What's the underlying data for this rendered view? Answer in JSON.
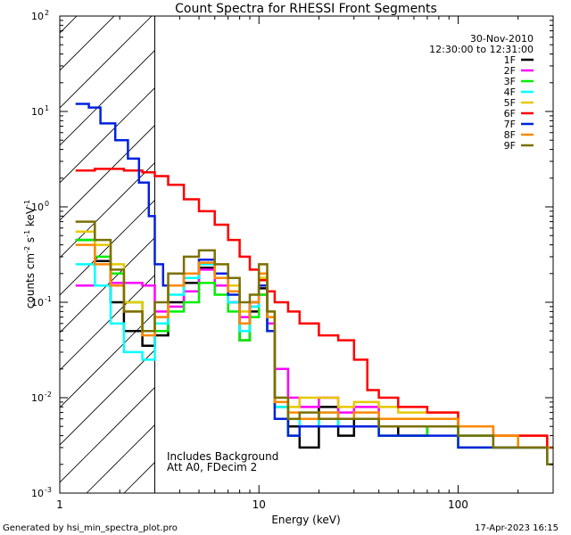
{
  "chart_data": {
    "type": "line",
    "title": "Count Spectra for RHESSI Front Segments",
    "xlabel": "Energy (keV)",
    "ylabel_parts": [
      "counts cm",
      "-2",
      " s",
      "-1",
      " keV",
      "-1"
    ],
    "xscale": "log",
    "yscale": "log",
    "xlim": [
      1,
      300
    ],
    "ylim": [
      0.001,
      100
    ],
    "x_ticks": [
      {
        "v": 1,
        "label": "1"
      },
      {
        "v": 10,
        "label": "10"
      },
      {
        "v": 100,
        "label": "100"
      }
    ],
    "y_ticks": [
      {
        "exp": -3
      },
      {
        "exp": -2
      },
      {
        "exp": -1
      },
      {
        "exp": 0
      },
      {
        "exp": 1
      },
      {
        "exp": 2
      }
    ],
    "date": "30-Nov-2010",
    "time_range": "12:30:00 to 12:31:00",
    "hatched_below_keV": 3,
    "annotations": [
      "Includes Background",
      "Att A0, FDecim 2"
    ],
    "series": [
      {
        "name": "1F",
        "color": "#000000",
        "points": [
          [
            1.2,
            0.45
          ],
          [
            1.5,
            0.27
          ],
          [
            1.8,
            0.1
          ],
          [
            2.1,
            0.05
          ],
          [
            2.6,
            0.035
          ],
          [
            3.0,
            0.045
          ],
          [
            3.5,
            0.1
          ],
          [
            4.2,
            0.16
          ],
          [
            5.0,
            0.23
          ],
          [
            6.0,
            0.2
          ],
          [
            7.0,
            0.1
          ],
          [
            8.0,
            0.04
          ],
          [
            9.0,
            0.08
          ],
          [
            10.0,
            0.14
          ],
          [
            11.0,
            0.05
          ],
          [
            12.0,
            0.008
          ],
          [
            14,
            0.005
          ],
          [
            16,
            0.003
          ],
          [
            20,
            0.008
          ],
          [
            25,
            0.004
          ],
          [
            30,
            0.006
          ],
          [
            40,
            0.005
          ],
          [
            50,
            0.004
          ],
          [
            70,
            0.005
          ],
          [
            100,
            0.004
          ],
          [
            150,
            0.003
          ],
          [
            200,
            0.003
          ],
          [
            280,
            0.003
          ]
        ]
      },
      {
        "name": "2F",
        "color": "#ff00ff",
        "points": [
          [
            1.2,
            0.15
          ],
          [
            1.5,
            0.15
          ],
          [
            1.8,
            0.16
          ],
          [
            2.1,
            0.16
          ],
          [
            2.6,
            0.15
          ],
          [
            3.0,
            0.08
          ],
          [
            3.5,
            0.09
          ],
          [
            4.2,
            0.13
          ],
          [
            5.0,
            0.22
          ],
          [
            6.0,
            0.15
          ],
          [
            7.0,
            0.1
          ],
          [
            8.0,
            0.07
          ],
          [
            9.0,
            0.09
          ],
          [
            10.0,
            0.12
          ],
          [
            11.0,
            0.06
          ],
          [
            12.0,
            0.02
          ],
          [
            14,
            0.01
          ],
          [
            16,
            0.008
          ],
          [
            20,
            0.01
          ],
          [
            25,
            0.007
          ],
          [
            30,
            0.008
          ],
          [
            40,
            0.006
          ],
          [
            50,
            0.006
          ],
          [
            70,
            0.006
          ],
          [
            100,
            0.005
          ],
          [
            150,
            0.004
          ],
          [
            200,
            0.004
          ],
          [
            280,
            0.003
          ]
        ]
      },
      {
        "name": "3F",
        "color": "#00ee00",
        "points": [
          [
            1.2,
            0.45
          ],
          [
            1.5,
            0.3
          ],
          [
            1.8,
            0.2
          ],
          [
            2.1,
            0.1
          ],
          [
            2.6,
            0.05
          ],
          [
            3.0,
            0.05
          ],
          [
            3.5,
            0.08
          ],
          [
            4.2,
            0.1
          ],
          [
            5.0,
            0.16
          ],
          [
            6.0,
            0.12
          ],
          [
            7.0,
            0.08
          ],
          [
            8.0,
            0.04
          ],
          [
            9.0,
            0.07
          ],
          [
            10.0,
            0.12
          ],
          [
            11.0,
            0.05
          ],
          [
            12.0,
            0.008
          ],
          [
            14,
            0.004
          ],
          [
            16,
            0.006
          ],
          [
            20,
            0.006
          ],
          [
            25,
            0.005
          ],
          [
            30,
            0.005
          ],
          [
            40,
            0.004
          ],
          [
            50,
            0.004
          ],
          [
            70,
            0.005
          ],
          [
            100,
            0.003
          ],
          [
            150,
            0.004
          ],
          [
            200,
            0.003
          ],
          [
            280,
            0.002
          ]
        ]
      },
      {
        "name": "4F",
        "color": "#00ffff",
        "points": [
          [
            1.2,
            0.25
          ],
          [
            1.5,
            0.15
          ],
          [
            1.8,
            0.06
          ],
          [
            2.1,
            0.03
          ],
          [
            2.6,
            0.025
          ],
          [
            3.0,
            0.06
          ],
          [
            3.5,
            0.12
          ],
          [
            4.2,
            0.18
          ],
          [
            5.0,
            0.25
          ],
          [
            6.0,
            0.2
          ],
          [
            7.0,
            0.1
          ],
          [
            8.0,
            0.05
          ],
          [
            9.0,
            0.09
          ],
          [
            10.0,
            0.15
          ],
          [
            11.0,
            0.05
          ],
          [
            12.0,
            0.008
          ],
          [
            14,
            0.006
          ],
          [
            16,
            0.005
          ],
          [
            20,
            0.007
          ],
          [
            25,
            0.005
          ],
          [
            30,
            0.005
          ],
          [
            40,
            0.005
          ],
          [
            50,
            0.005
          ],
          [
            70,
            0.005
          ],
          [
            100,
            0.004
          ],
          [
            150,
            0.003
          ],
          [
            200,
            0.003
          ],
          [
            280,
            0.002
          ]
        ]
      },
      {
        "name": "5F",
        "color": "#e6c800",
        "points": [
          [
            1.2,
            0.55
          ],
          [
            1.5,
            0.4
          ],
          [
            1.8,
            0.25
          ],
          [
            2.1,
            0.1
          ],
          [
            2.6,
            0.05
          ],
          [
            3.0,
            0.07
          ],
          [
            3.5,
            0.15
          ],
          [
            4.2,
            0.2
          ],
          [
            5.0,
            0.28
          ],
          [
            6.0,
            0.2
          ],
          [
            7.0,
            0.15
          ],
          [
            8.0,
            0.08
          ],
          [
            9.0,
            0.1
          ],
          [
            10.0,
            0.18
          ],
          [
            11.0,
            0.08
          ],
          [
            12.0,
            0.01
          ],
          [
            14,
            0.008
          ],
          [
            16,
            0.01
          ],
          [
            20,
            0.01
          ],
          [
            25,
            0.008
          ],
          [
            30,
            0.009
          ],
          [
            40,
            0.008
          ],
          [
            50,
            0.007
          ],
          [
            70,
            0.007
          ],
          [
            100,
            0.005
          ],
          [
            150,
            0.004
          ],
          [
            200,
            0.004
          ],
          [
            280,
            0.003
          ]
        ]
      },
      {
        "name": "6F",
        "color": "#ff0000",
        "points": [
          [
            1.2,
            2.4
          ],
          [
            1.5,
            2.5
          ],
          [
            1.8,
            2.5
          ],
          [
            2.1,
            2.4
          ],
          [
            2.6,
            2.3
          ],
          [
            3.0,
            2.1
          ],
          [
            3.5,
            1.7
          ],
          [
            4.2,
            1.2
          ],
          [
            5.0,
            0.9
          ],
          [
            6.0,
            0.65
          ],
          [
            7.0,
            0.45
          ],
          [
            8.0,
            0.3
          ],
          [
            9.0,
            0.22
          ],
          [
            10.0,
            0.17
          ],
          [
            11.0,
            0.13
          ],
          [
            12.0,
            0.1
          ],
          [
            14,
            0.08
          ],
          [
            16,
            0.06
          ],
          [
            20,
            0.045
          ],
          [
            25,
            0.04
          ],
          [
            30,
            0.025
          ],
          [
            35,
            0.012
          ],
          [
            40,
            0.01
          ],
          [
            50,
            0.008
          ],
          [
            70,
            0.007
          ],
          [
            100,
            0.005
          ],
          [
            150,
            0.004
          ],
          [
            200,
            0.004
          ],
          [
            280,
            0.003
          ]
        ]
      },
      {
        "name": "7F",
        "color": "#0022dd",
        "points": [
          [
            1.2,
            12.0
          ],
          [
            1.4,
            11.0
          ],
          [
            1.6,
            7.5
          ],
          [
            1.9,
            5.0
          ],
          [
            2.2,
            3.2
          ],
          [
            2.5,
            1.8
          ],
          [
            2.8,
            0.8
          ],
          [
            3.0,
            0.25
          ],
          [
            3.3,
            0.15
          ],
          [
            3.8,
            0.15
          ],
          [
            4.2,
            0.2
          ],
          [
            5.0,
            0.28
          ],
          [
            6.0,
            0.2
          ],
          [
            7.0,
            0.12
          ],
          [
            8.0,
            0.06
          ],
          [
            9.0,
            0.1
          ],
          [
            10.0,
            0.15
          ],
          [
            11.0,
            0.05
          ],
          [
            12.0,
            0.006
          ],
          [
            14,
            0.004
          ],
          [
            16,
            0.005
          ],
          [
            20,
            0.005
          ],
          [
            25,
            0.005
          ],
          [
            30,
            0.005
          ],
          [
            40,
            0.004
          ],
          [
            50,
            0.004
          ],
          [
            70,
            0.004
          ],
          [
            100,
            0.003
          ],
          [
            150,
            0.003
          ],
          [
            200,
            0.003
          ],
          [
            280,
            0.002
          ]
        ]
      },
      {
        "name": "8F",
        "color": "#ff8800",
        "points": [
          [
            1.2,
            0.4
          ],
          [
            1.5,
            0.25
          ],
          [
            1.8,
            0.15
          ],
          [
            2.1,
            0.08
          ],
          [
            2.6,
            0.045
          ],
          [
            3.0,
            0.07
          ],
          [
            3.5,
            0.15
          ],
          [
            4.2,
            0.2
          ],
          [
            5.0,
            0.26
          ],
          [
            6.0,
            0.18
          ],
          [
            7.0,
            0.13
          ],
          [
            8.0,
            0.06
          ],
          [
            9.0,
            0.1
          ],
          [
            10.0,
            0.2
          ],
          [
            11.0,
            0.07
          ],
          [
            12.0,
            0.009
          ],
          [
            14,
            0.007
          ],
          [
            16,
            0.006
          ],
          [
            20,
            0.007
          ],
          [
            25,
            0.006
          ],
          [
            30,
            0.007
          ],
          [
            40,
            0.006
          ],
          [
            50,
            0.006
          ],
          [
            70,
            0.006
          ],
          [
            100,
            0.005
          ],
          [
            150,
            0.004
          ],
          [
            200,
            0.003
          ],
          [
            280,
            0.003
          ]
        ]
      },
      {
        "name": "9F",
        "color": "#7a7000",
        "points": [
          [
            1.2,
            0.7
          ],
          [
            1.5,
            0.45
          ],
          [
            1.8,
            0.22
          ],
          [
            2.1,
            0.08
          ],
          [
            2.6,
            0.05
          ],
          [
            3.0,
            0.1
          ],
          [
            3.5,
            0.2
          ],
          [
            4.2,
            0.3
          ],
          [
            5.0,
            0.35
          ],
          [
            6.0,
            0.25
          ],
          [
            7.0,
            0.18
          ],
          [
            8.0,
            0.1
          ],
          [
            9.0,
            0.12
          ],
          [
            10.0,
            0.25
          ],
          [
            11.0,
            0.08
          ],
          [
            12.0,
            0.01
          ],
          [
            14,
            0.006
          ],
          [
            16,
            0.007
          ],
          [
            20,
            0.006
          ],
          [
            25,
            0.006
          ],
          [
            30,
            0.006
          ],
          [
            40,
            0.005
          ],
          [
            50,
            0.005
          ],
          [
            70,
            0.005
          ],
          [
            100,
            0.004
          ],
          [
            150,
            0.003
          ],
          [
            200,
            0.003
          ],
          [
            280,
            0.002
          ]
        ]
      }
    ]
  },
  "footer": {
    "left": "Generated by hsi_min_spectra_plot.pro",
    "right": "17-Apr-2023 16:15"
  }
}
